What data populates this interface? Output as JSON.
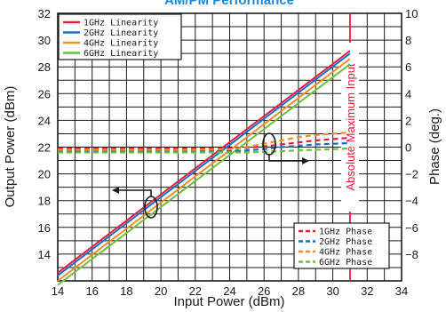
{
  "chart_data": {
    "type": "line",
    "title": "AM/PM Performance",
    "xlabel": "Input Power (dBm)",
    "ylabel_left": "Output Power (dBm)",
    "ylabel_right": "Phase (deg.)",
    "xlim": [
      14,
      34
    ],
    "ylim_left": [
      12,
      32
    ],
    "ylim_right": [
      -10,
      10
    ],
    "x_ticks": [
      "14",
      "16",
      "18",
      "20",
      "22",
      "24",
      "26",
      "28",
      "30",
      "32",
      "34"
    ],
    "y_left_ticks": [
      "14",
      "16",
      "18",
      "20",
      "22",
      "24",
      "26",
      "28",
      "30",
      "32"
    ],
    "y_right_ticks": [
      "−8",
      "−6",
      "−4",
      "−2",
      "0",
      "2",
      "4",
      "6",
      "8",
      "10"
    ],
    "grid": true,
    "legend_linearity_position": "top-left",
    "legend_phase_position": "bottom-right",
    "annotation": {
      "text": "Absolute Maximum Input",
      "x": 31,
      "color": "#e0203c"
    },
    "linearity_series": [
      {
        "name": "1GHz Linearity",
        "color": "#e0203c",
        "x": [
          14,
          31
        ],
        "y": [
          12.6,
          29.2
        ]
      },
      {
        "name": "2GHz Linearity",
        "color": "#1a6fc4",
        "x": [
          14,
          31
        ],
        "y": [
          12.4,
          29.0
        ]
      },
      {
        "name": "4GHz Linearity",
        "color": "#f28c28",
        "x": [
          14,
          31
        ],
        "y": [
          12.0,
          28.6
        ]
      },
      {
        "name": "6GHz Linearity",
        "color": "#6cbf3f",
        "x": [
          14,
          31
        ],
        "y": [
          11.7,
          28.2
        ]
      }
    ],
    "phase_series": [
      {
        "name": "1GHz Phase",
        "color": "#e0203c",
        "x": [
          14,
          22,
          24,
          25,
          26,
          27,
          28,
          29,
          30,
          31
        ],
        "y": [
          -0.1,
          -0.1,
          -0.1,
          -0.05,
          0.05,
          0.2,
          0.35,
          0.5,
          0.6,
          0.7
        ]
      },
      {
        "name": "2GHz Phase",
        "color": "#1a6fc4",
        "x": [
          14,
          22,
          24,
          25,
          26,
          27,
          28,
          29,
          30,
          31
        ],
        "y": [
          -0.3,
          -0.3,
          -0.3,
          -0.25,
          -0.15,
          0.0,
          0.1,
          0.2,
          0.25,
          0.3
        ]
      },
      {
        "name": "4GHz Phase",
        "color": "#f28c28",
        "x": [
          14,
          22,
          24,
          25,
          26,
          27,
          28,
          29,
          30,
          31
        ],
        "y": [
          -0.2,
          -0.2,
          -0.15,
          0.0,
          0.25,
          0.5,
          0.75,
          0.9,
          1.0,
          1.1
        ]
      },
      {
        "name": "6GHz Phase",
        "color": "#6cbf3f",
        "x": [
          14,
          22,
          24,
          25,
          26,
          27,
          28,
          29,
          30,
          31
        ],
        "y": [
          -0.4,
          -0.4,
          -0.4,
          -0.4,
          -0.35,
          -0.3,
          -0.25,
          -0.2,
          -0.15,
          -0.1
        ]
      }
    ]
  }
}
